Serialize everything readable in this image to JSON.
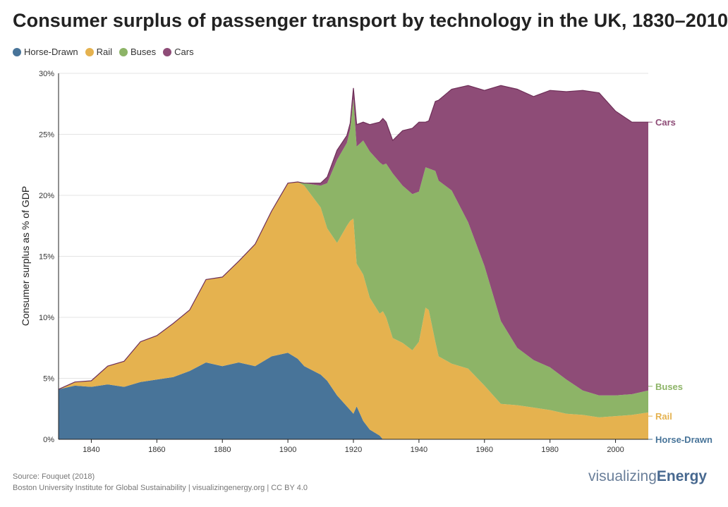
{
  "page": {
    "title": "Consumer surplus of passenger transport by technology in the UK, 1830–2010",
    "source": "Source: Fouquet (2018)",
    "credit": "Boston University Institute for Global Sustainability | visualizingenergy.org | CC BY 4.0",
    "brand_light": "visualizing",
    "brand_bold": "Energy"
  },
  "chart_data": {
    "type": "area",
    "stacked": true,
    "title": "Consumer surplus of passenger transport by technology in the UK, 1830–2010",
    "xlabel": "",
    "ylabel": "Consumer surplus as % of GDP",
    "xlim": [
      1830,
      2010
    ],
    "ylim": [
      0,
      30
    ],
    "x_ticks": [
      "1840",
      "1860",
      "1880",
      "1900",
      "1920",
      "1940",
      "1960",
      "1980",
      "2000"
    ],
    "y_ticks": [
      "0%",
      "5%",
      "10%",
      "15%",
      "20%",
      "25%",
      "30%"
    ],
    "grid": true,
    "legend_position": "top-left",
    "x": [
      1830,
      1835,
      1840,
      1845,
      1850,
      1855,
      1860,
      1865,
      1870,
      1875,
      1880,
      1885,
      1890,
      1895,
      1900,
      1903,
      1905,
      1910,
      1912,
      1915,
      1918,
      1919,
      1920,
      1921,
      1923,
      1925,
      1928,
      1929,
      1930,
      1932,
      1935,
      1938,
      1940,
      1942,
      1943,
      1945,
      1946,
      1950,
      1955,
      1960,
      1965,
      1970,
      1975,
      1980,
      1985,
      1990,
      1995,
      2000,
      2005,
      2010
    ],
    "series": [
      {
        "name": "Horse-Drawn",
        "color": "#487499",
        "values": [
          4.1,
          4.4,
          4.3,
          4.5,
          4.3,
          4.7,
          4.9,
          5.1,
          5.6,
          6.3,
          6.0,
          6.3,
          6.0,
          6.8,
          7.1,
          6.6,
          6.0,
          5.3,
          4.8,
          3.6,
          2.7,
          2.4,
          2.1,
          2.7,
          1.5,
          0.8,
          0.3,
          0.0,
          0,
          0,
          0,
          0,
          0,
          0,
          0,
          0,
          0,
          0,
          0,
          0,
          0,
          0,
          0,
          0,
          0,
          0,
          0,
          0,
          0,
          0
        ]
      },
      {
        "name": "Rail",
        "color": "#e5b24f",
        "values": [
          0.0,
          0.3,
          0.5,
          1.5,
          2.1,
          3.3,
          3.6,
          4.4,
          5.0,
          6.8,
          7.3,
          8.3,
          10.0,
          11.9,
          13.9,
          14.5,
          14.8,
          13.7,
          12.5,
          12.5,
          14.8,
          15.5,
          16.0,
          11.7,
          12.0,
          10.8,
          10.0,
          10.5,
          10.0,
          8.3,
          7.9,
          7.3,
          8.0,
          10.8,
          10.6,
          8.0,
          6.8,
          6.2,
          5.8,
          4.4,
          2.9,
          2.8,
          2.6,
          2.4,
          2.1,
          2.0,
          1.8,
          1.9,
          2.0,
          2.2
        ]
      },
      {
        "name": "Buses",
        "color": "#8db467",
        "values": [
          0,
          0,
          0,
          0,
          0,
          0,
          0,
          0,
          0,
          0,
          0,
          0,
          0,
          0,
          0,
          0,
          0.2,
          1.8,
          3.7,
          6.8,
          6.8,
          7.5,
          9.8,
          9.6,
          11.0,
          12.0,
          12.4,
          12.0,
          12.6,
          13.5,
          12.9,
          12.8,
          12.3,
          11.5,
          11.6,
          14.0,
          14.4,
          14.2,
          12.0,
          9.8,
          6.8,
          4.7,
          3.9,
          3.5,
          2.8,
          2.0,
          1.8,
          1.7,
          1.7,
          1.8
        ]
      },
      {
        "name": "Cars",
        "color": "#8e4c77",
        "values": [
          0,
          0,
          0,
          0,
          0,
          0,
          0,
          0,
          0,
          0,
          0,
          0,
          0,
          0,
          0,
          0,
          0.0,
          0.2,
          0.5,
          0.8,
          0.6,
          0.5,
          0.9,
          1.8,
          1.5,
          2.2,
          3.3,
          3.8,
          3.4,
          2.7,
          4.5,
          5.4,
          5.7,
          3.7,
          3.9,
          5.7,
          6.6,
          8.3,
          11.2,
          14.4,
          19.3,
          21.2,
          21.6,
          22.7,
          23.6,
          24.6,
          24.8,
          23.3,
          22.3,
          22.0
        ]
      }
    ],
    "end_labels": [
      "Cars",
      "Buses",
      "Rail",
      "Horse-Drawn"
    ]
  }
}
